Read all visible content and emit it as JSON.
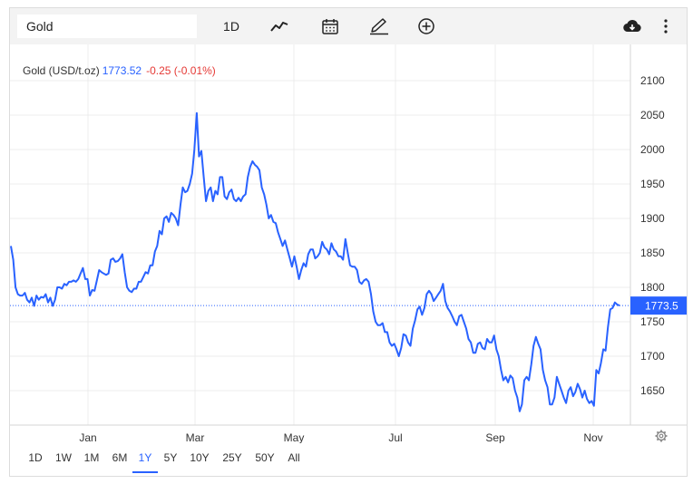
{
  "toolbar": {
    "search_value": "Gold",
    "interval_label": "1D",
    "icons": [
      "line-chart-icon",
      "calendar-icon",
      "pencil-icon",
      "plus-circle-icon",
      "cloud-download-icon",
      "more-vertical-icon"
    ]
  },
  "legend": {
    "name": "Gold (USD/t.oz)",
    "price": "1773.52",
    "change": "-0.25 (-0.01%)"
  },
  "price_tag": "1773.5",
  "ranges": {
    "items": [
      "1D",
      "1W",
      "1M",
      "6M",
      "1Y",
      "5Y",
      "10Y",
      "25Y",
      "50Y",
      "All"
    ],
    "active": "1Y"
  },
  "colors": {
    "line": "#2962ff",
    "negative": "#e53935",
    "grid": "#ececec"
  },
  "chart_data": {
    "type": "line",
    "title": "",
    "xlabel": "",
    "ylabel": "",
    "ylim": [
      1600,
      2110
    ],
    "yticks": [
      1650,
      1700,
      1750,
      1800,
      1850,
      1900,
      1950,
      2000,
      2050,
      2100
    ],
    "month_labels": [
      "Jan",
      "Mar",
      "May",
      "Jul",
      "Sep",
      "Nov"
    ],
    "last_value": 1773.5,
    "grid": true,
    "series": [
      {
        "values": [
          1860,
          1840,
          1800,
          1790,
          1788,
          1788,
          1792,
          1782,
          1778,
          1785,
          1773,
          1788,
          1782,
          1786,
          1785,
          1790,
          1778,
          1785,
          1773,
          1782,
          1800,
          1800,
          1798,
          1805,
          1803,
          1808,
          1808,
          1810,
          1808,
          1812,
          1820,
          1828,
          1812,
          1812,
          1788,
          1796,
          1795,
          1810,
          1825,
          1822,
          1820,
          1818,
          1820,
          1840,
          1842,
          1837,
          1838,
          1842,
          1848,
          1822,
          1800,
          1795,
          1793,
          1798,
          1798,
          1808,
          1808,
          1815,
          1822,
          1820,
          1832,
          1832,
          1852,
          1860,
          1882,
          1877,
          1900,
          1903,
          1895,
          1908,
          1905,
          1900,
          1890,
          1920,
          1945,
          1938,
          1940,
          1950,
          1965,
          2000,
          2053,
          1990,
          1998,
          1960,
          1925,
          1940,
          1945,
          1925,
          1940,
          1935,
          1960,
          1960,
          1932,
          1928,
          1938,
          1942,
          1928,
          1925,
          1930,
          1925,
          1932,
          1935,
          1960,
          1975,
          1983,
          1978,
          1975,
          1970,
          1945,
          1935,
          1920,
          1900,
          1905,
          1895,
          1893,
          1880,
          1870,
          1860,
          1868,
          1855,
          1843,
          1830,
          1845,
          1830,
          1812,
          1825,
          1835,
          1830,
          1848,
          1855,
          1855,
          1842,
          1845,
          1850,
          1866,
          1858,
          1855,
          1848,
          1864,
          1855,
          1852,
          1845,
          1845,
          1840,
          1870,
          1850,
          1832,
          1830,
          1830,
          1825,
          1808,
          1805,
          1810,
          1812,
          1808,
          1790,
          1765,
          1750,
          1745,
          1745,
          1748,
          1735,
          1735,
          1720,
          1715,
          1718,
          1710,
          1700,
          1712,
          1732,
          1730,
          1720,
          1715,
          1740,
          1752,
          1768,
          1772,
          1760,
          1770,
          1790,
          1795,
          1790,
          1780,
          1785,
          1790,
          1795,
          1805,
          1780,
          1770,
          1765,
          1758,
          1750,
          1745,
          1758,
          1760,
          1750,
          1740,
          1725,
          1720,
          1705,
          1705,
          1718,
          1720,
          1712,
          1710,
          1725,
          1720,
          1720,
          1730,
          1710,
          1700,
          1680,
          1665,
          1670,
          1662,
          1672,
          1668,
          1650,
          1640,
          1620,
          1630,
          1665,
          1670,
          1665,
          1688,
          1715,
          1728,
          1718,
          1710,
          1680,
          1665,
          1655,
          1630,
          1630,
          1640,
          1670,
          1660,
          1650,
          1640,
          1632,
          1650,
          1655,
          1642,
          1648,
          1660,
          1652,
          1640,
          1650,
          1638,
          1632,
          1635,
          1628,
          1680,
          1675,
          1690,
          1710,
          1708,
          1742,
          1768,
          1770,
          1778,
          1775,
          1773.5
        ]
      }
    ]
  }
}
